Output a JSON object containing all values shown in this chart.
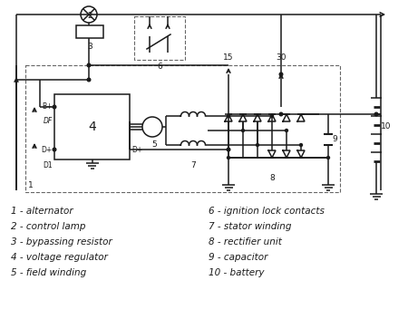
{
  "bg_color": "#ffffff",
  "line_color": "#1a1a1a",
  "dash_color": "#666666",
  "legend": [
    "1 - alternator",
    "2 - control lamp",
    "3 - bypassing resistor",
    "4 - voltage regulator",
    "5 - field winding",
    "6 - ignition lock contacts",
    "7 - stator winding",
    "8 - rectifier unit",
    "9 - capacitor",
    "10 - battery"
  ]
}
